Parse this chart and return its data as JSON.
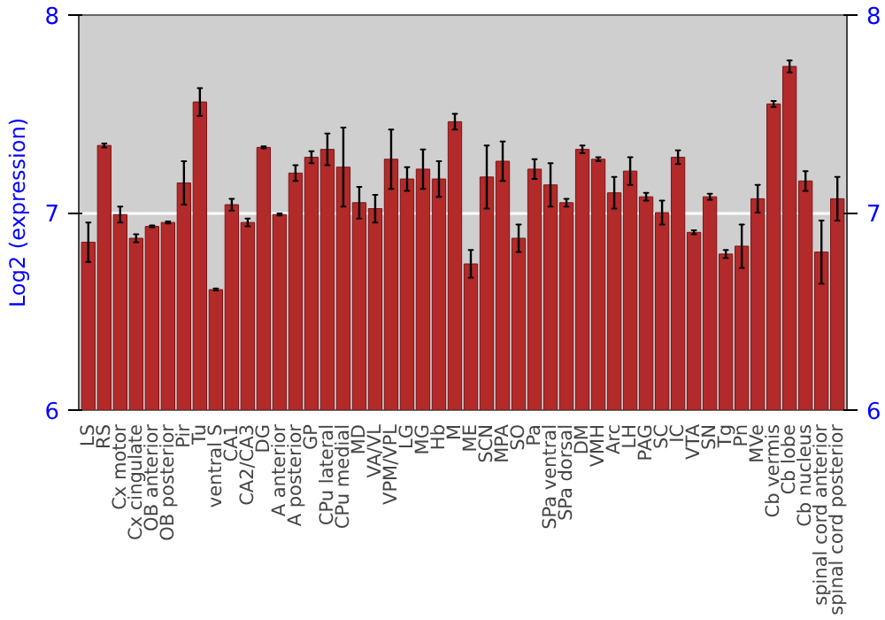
{
  "chart_data": {
    "type": "bar",
    "ylabel": "Log2 (expression)",
    "color": "#b22a2a",
    "categories": [
      "LS",
      "RS",
      "Cx motor",
      "Cx cingulate",
      "OB anterior",
      "OB posterior",
      "Pir",
      "Tu",
      "ventral S",
      "CA1",
      "CA2/CA3",
      "DG",
      "A anterior",
      "A posterior",
      "GP",
      "CPu lateral",
      "CPu medial",
      "MD",
      "VA/VL",
      "VPM/VPL",
      "LG",
      "MG",
      "Hb",
      "M",
      "ME",
      "SCN",
      "MPA",
      "SO",
      "Pa",
      "SPa ventral",
      "SPa dorsal",
      "DM",
      "VMH",
      "Arc",
      "LH",
      "PAG",
      "SC",
      "IC",
      "VTA",
      "SN",
      "Tg",
      "Pn",
      "MVe",
      "Cb vermis",
      "Cb lobe",
      "Cb nucleus",
      "spinal cord anterior",
      "spinal cord posterior"
    ],
    "values": [
      6.85,
      7.34,
      6.99,
      6.87,
      6.93,
      6.95,
      7.15,
      7.56,
      6.61,
      7.04,
      6.95,
      7.33,
      6.99,
      7.2,
      7.28,
      7.32,
      7.23,
      7.05,
      7.02,
      7.27,
      7.17,
      7.22,
      7.17,
      7.46,
      6.74,
      7.18,
      7.26,
      6.87,
      7.22,
      7.14,
      7.05,
      7.32,
      7.27,
      7.1,
      7.21,
      7.08,
      7.0,
      7.28,
      6.9,
      7.08,
      6.79,
      6.83,
      7.07,
      7.55,
      7.74,
      7.16,
      6.8,
      7.07
    ],
    "errors": [
      0.1,
      0.01,
      0.04,
      0.02,
      0.005,
      0.005,
      0.11,
      0.07,
      0.005,
      0.03,
      0.02,
      0.005,
      0.005,
      0.04,
      0.03,
      0.08,
      0.2,
      0.08,
      0.07,
      0.15,
      0.06,
      0.1,
      0.09,
      0.04,
      0.07,
      0.16,
      0.1,
      0.07,
      0.05,
      0.11,
      0.02,
      0.02,
      0.01,
      0.08,
      0.07,
      0.02,
      0.06,
      0.035,
      0.01,
      0.015,
      0.02,
      0.11,
      0.07,
      0.015,
      0.03,
      0.05,
      0.16,
      0.11
    ],
    "ylim": [
      6,
      8
    ],
    "yticks": [
      6,
      7,
      8
    ],
    "y2lim": [
      6,
      8
    ],
    "y2ticks": [
      6,
      7,
      8
    ],
    "grid": "y"
  }
}
